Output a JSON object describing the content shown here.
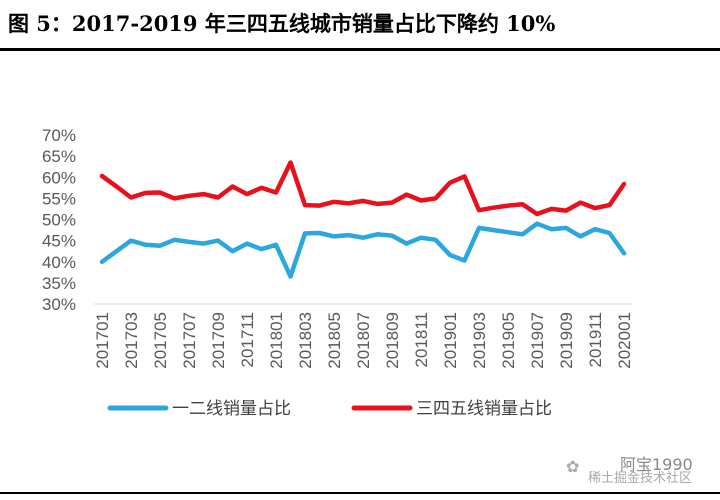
{
  "title": "图 5：2017-2019 年三四五线城市销量占比下降约 10%",
  "watermark": {
    "icon": "wechat-icon",
    "handle": "阿宝1990",
    "site": "稀土掘金技术社区"
  },
  "chart_data": {
    "type": "line",
    "title": "图 5：2017-2019 年三四五线城市销量占比下降约 10%",
    "xlabel": "",
    "ylabel": "",
    "ylim": [
      30,
      70
    ],
    "yticks": [
      30,
      35,
      40,
      45,
      50,
      55,
      60,
      65,
      70
    ],
    "ytick_labels": [
      "30%",
      "35%",
      "40%",
      "45%",
      "50%",
      "55%",
      "60%",
      "65%",
      "70%"
    ],
    "grid": false,
    "legend_position": "bottom",
    "x": [
      "201701",
      "201702",
      "201703",
      "201704",
      "201705",
      "201706",
      "201707",
      "201708",
      "201709",
      "201710",
      "201711",
      "201712",
      "201801",
      "201802",
      "201803",
      "201804",
      "201805",
      "201806",
      "201807",
      "201808",
      "201809",
      "201810",
      "201811",
      "201812",
      "201901",
      "201902",
      "201903",
      "201904",
      "201905",
      "201906",
      "201907",
      "201908",
      "201909",
      "201910",
      "201911",
      "201912",
      "202001"
    ],
    "xtick_labels": [
      "201701",
      "201703",
      "201705",
      "201707",
      "201709",
      "201711",
      "201801",
      "201803",
      "201805",
      "201807",
      "201809",
      "201811",
      "201901",
      "201903",
      "201905",
      "201907",
      "201909",
      "201911",
      "202001"
    ],
    "series": [
      {
        "name": "一二线销量占比",
        "color": "#2BA6DE",
        "values": [
          40.0,
          42.5,
          45.0,
          44.0,
          43.8,
          45.2,
          44.7,
          44.3,
          45.0,
          42.5,
          44.3,
          43.0,
          44.0,
          36.5,
          46.7,
          46.8,
          46.0,
          46.3,
          45.7,
          46.5,
          46.2,
          44.3,
          45.7,
          45.2,
          41.6,
          40.3,
          48.0,
          47.5,
          47.0,
          46.5,
          49.0,
          47.7,
          48.0,
          46.0,
          47.7,
          46.8,
          42.0
        ]
      },
      {
        "name": "三四五线销量占比",
        "color": "#E8111B",
        "values": [
          60.3,
          57.8,
          55.2,
          56.3,
          56.4,
          55.0,
          55.6,
          56.0,
          55.2,
          57.8,
          56.0,
          57.5,
          56.4,
          63.5,
          53.4,
          53.3,
          54.2,
          53.8,
          54.4,
          53.7,
          54.0,
          55.9,
          54.5,
          55.0,
          58.7,
          60.2,
          52.2,
          52.8,
          53.3,
          53.6,
          51.3,
          52.5,
          52.1,
          54.0,
          52.7,
          53.4,
          58.4
        ]
      }
    ]
  }
}
